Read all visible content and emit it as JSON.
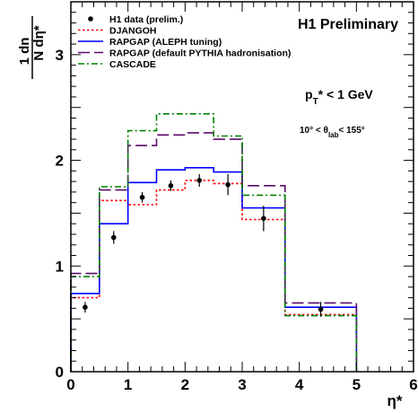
{
  "chart_data": {
    "type": "line",
    "title": "H1 Preliminary",
    "xlabel": "η*",
    "ylabel_num": "1 dn",
    "ylabel_den": "N dη*",
    "annotations": {
      "pt_cut": "p<sub>T</sub>* < 1 GeV",
      "theta_cut": "10° < θ<sub>lab</sub>< 155°"
    },
    "xlim": [
      0,
      6
    ],
    "ylim": [
      0,
      3.5
    ],
    "xticks": [
      0,
      1,
      2,
      3,
      4,
      5,
      6
    ],
    "yticks": [
      0,
      1,
      2,
      3
    ],
    "bin_edges": [
      0,
      0.5,
      1,
      1.5,
      2,
      2.5,
      3,
      3.75,
      5
    ],
    "data_points": {
      "name": "H1 data (prelim.)",
      "x": [
        0.25,
        0.75,
        1.25,
        1.75,
        2.25,
        2.75,
        3.375,
        4.375
      ],
      "y": [
        0.61,
        1.27,
        1.65,
        1.76,
        1.81,
        1.77,
        1.45,
        0.59
      ],
      "err": [
        0.05,
        0.06,
        0.05,
        0.05,
        0.06,
        0.1,
        0.12,
        0.07
      ]
    },
    "series": [
      {
        "name": "DJANGOH",
        "color": "#ff0000",
        "style": "dotted",
        "values": [
          0.7,
          1.62,
          1.58,
          1.72,
          1.81,
          1.78,
          1.44,
          0.54
        ]
      },
      {
        "name": "RAPGAP (ALEPH tuning)",
        "color": "#0000ff",
        "style": "solid",
        "values": [
          0.74,
          1.4,
          1.79,
          1.91,
          1.93,
          1.89,
          1.55,
          0.61
        ]
      },
      {
        "name": "RAPGAP (default PYTHIA hadronisation)",
        "color": "#5a0a6a",
        "style": "longdash",
        "values": [
          0.93,
          1.72,
          2.14,
          2.24,
          2.26,
          2.2,
          1.76,
          0.65
        ]
      },
      {
        "name": "CASCADE",
        "color": "#008000",
        "style": "dashdot",
        "values": [
          0.9,
          1.75,
          2.28,
          2.44,
          2.44,
          2.23,
          1.67,
          0.53
        ]
      }
    ],
    "legend_position": "top-left",
    "grid": false
  }
}
